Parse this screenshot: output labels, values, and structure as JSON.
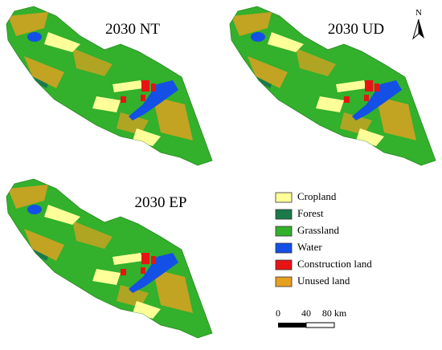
{
  "panels": [
    {
      "title": "2030 NT"
    },
    {
      "title": "2030 UD"
    },
    {
      "title": "2030 EP"
    }
  ],
  "north_arrow": {
    "label": "N"
  },
  "legend": [
    {
      "label": "Cropland",
      "color": "#ffff99"
    },
    {
      "label": "Forest",
      "color": "#1a7a4a"
    },
    {
      "label": "Grassland",
      "color": "#33b02c"
    },
    {
      "label": "Water",
      "color": "#1450e6"
    },
    {
      "label": "Construction land",
      "color": "#e61414"
    },
    {
      "label": "Unused land",
      "color": "#e6a020"
    }
  ],
  "scale_bar": {
    "labels": [
      "0",
      "40",
      "80 km"
    ]
  }
}
